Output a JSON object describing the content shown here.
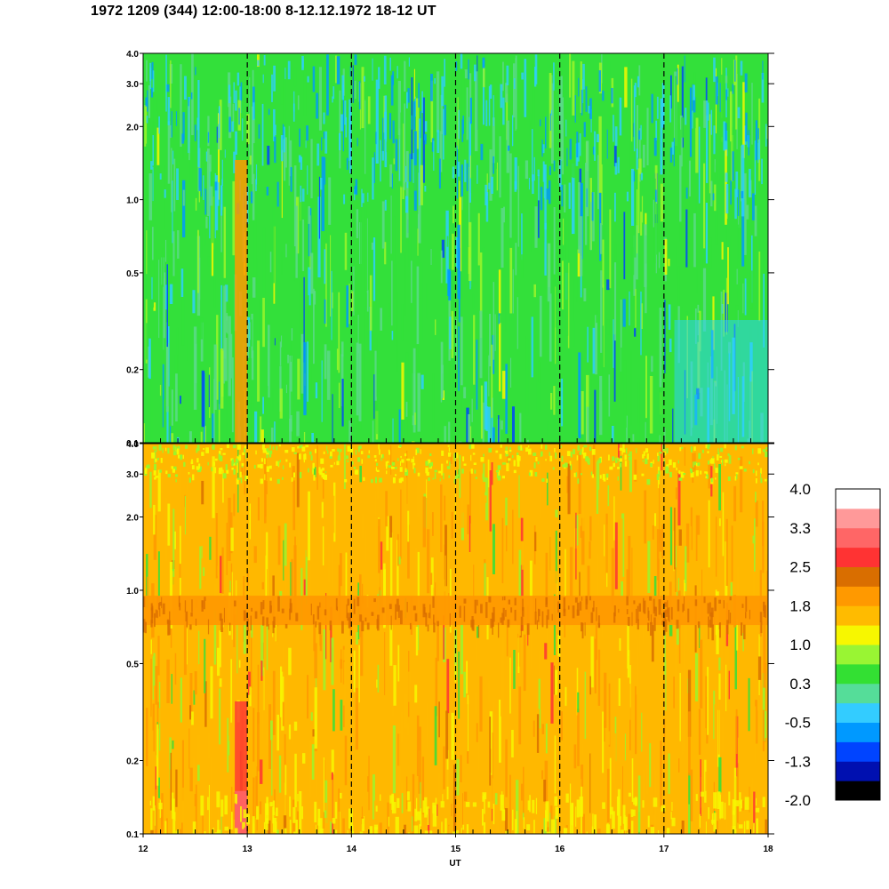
{
  "title": "1972 1209 (344) 12:00-18:00 8-12.12.1972  18-12 UT",
  "chart_data": [
    {
      "type": "heatmap",
      "panel": "upper",
      "x_range": [
        12,
        18
      ],
      "y_range": [
        0.1,
        4.0
      ],
      "y_scale": "log",
      "y_ticks": [
        "4.0",
        "3.0",
        "2.0",
        "1.0",
        "0.5",
        "0.2",
        "0.1"
      ],
      "y_tick_values": [
        4.0,
        3.0,
        2.0,
        1.0,
        0.5,
        0.2,
        0.1
      ],
      "x_ticks": [
        "12",
        "13",
        "14",
        "15",
        "16",
        "17",
        "18"
      ],
      "x_tick_values": [
        12,
        13,
        14,
        15,
        16,
        17,
        18
      ],
      "xlabel": "UT",
      "vertical_dashed_lines": [
        13,
        14,
        15,
        16,
        17
      ],
      "dominant_colors": [
        "#33e03a",
        "#5cd98a",
        "#2ecfff",
        "#9cf52a"
      ]
    },
    {
      "type": "heatmap",
      "panel": "lower",
      "x_range": [
        12,
        18
      ],
      "y_range": [
        0.1,
        4.0
      ],
      "y_scale": "log",
      "y_ticks": [
        "4.0",
        "3.0",
        "2.0",
        "1.0",
        "0.5",
        "0.2",
        "0.1"
      ],
      "y_tick_values": [
        4.0,
        3.0,
        2.0,
        1.0,
        0.5,
        0.2,
        0.1
      ],
      "x_ticks": [
        "12",
        "13",
        "14",
        "15",
        "16",
        "17",
        "18"
      ],
      "x_tick_values": [
        12,
        13,
        14,
        15,
        16,
        17,
        18
      ],
      "xlabel": "UT",
      "vertical_dashed_lines": [
        13,
        14,
        15,
        16,
        17
      ],
      "dominant_colors": [
        "#ffb800",
        "#ff9900",
        "#f7f700",
        "#d96e00"
      ]
    }
  ],
  "colorbar": {
    "colors": [
      "#000000",
      "#0010b0",
      "#0044ff",
      "#0099ff",
      "#33ccff",
      "#55dd99",
      "#33e033",
      "#99f533",
      "#f7f700",
      "#ffbb00",
      "#ff9900",
      "#d96e00",
      "#ff3333",
      "#ff6666",
      "#ff9999",
      "#ffffff"
    ],
    "tick_labels": [
      "4.0",
      "3.3",
      "2.5",
      "1.8",
      "1.0",
      "0.3",
      "-0.5",
      "-1.3",
      "-2.0"
    ]
  },
  "xlabel": "UT",
  "x_tick_labels": [
    "12",
    "13",
    "14",
    "15",
    "16",
    "17",
    "18"
  ]
}
